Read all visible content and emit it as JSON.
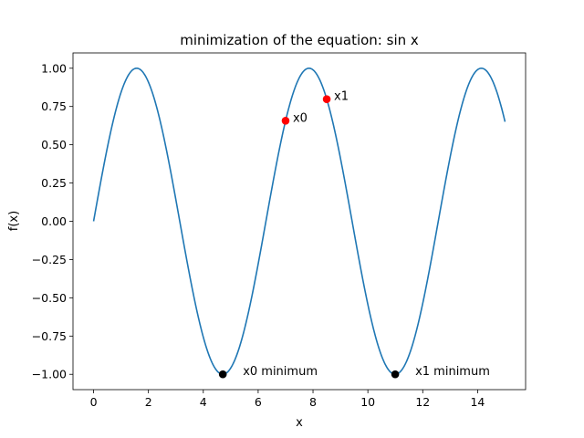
{
  "chart_data": {
    "type": "line",
    "title": "minimization of the equation: sin x",
    "xlabel": "x",
    "ylabel": "f(x)",
    "xlim": [
      -0.75,
      15.75
    ],
    "ylim": [
      -1.1,
      1.1
    ],
    "xticks": [
      0,
      2,
      4,
      6,
      8,
      10,
      12,
      14
    ],
    "yticks": [
      -1.0,
      -0.75,
      -0.5,
      -0.25,
      0.0,
      0.25,
      0.5,
      0.75,
      1.0
    ],
    "xtick_labels": [
      "0",
      "2",
      "4",
      "6",
      "8",
      "10",
      "12",
      "14"
    ],
    "ytick_labels": [
      "−1.00",
      "−0.75",
      "−0.50",
      "−0.25",
      "0.00",
      "0.25",
      "0.50",
      "0.75",
      "1.00"
    ],
    "grid": false,
    "series": [
      {
        "function": "sin",
        "x_range": [
          0,
          15
        ],
        "color": "#1f77b4"
      }
    ],
    "points": [
      {
        "label": "x0",
        "x": 7.0,
        "y": 0.657,
        "color": "#ff0000"
      },
      {
        "label": "x1",
        "x": 8.5,
        "y": 0.798,
        "color": "#ff0000"
      },
      {
        "label": "x0 minimum",
        "x": 4.712,
        "y": -1.0,
        "color": "#000000"
      },
      {
        "label": "x1 minimum",
        "x": 10.996,
        "y": -1.0,
        "color": "#000000"
      }
    ]
  }
}
